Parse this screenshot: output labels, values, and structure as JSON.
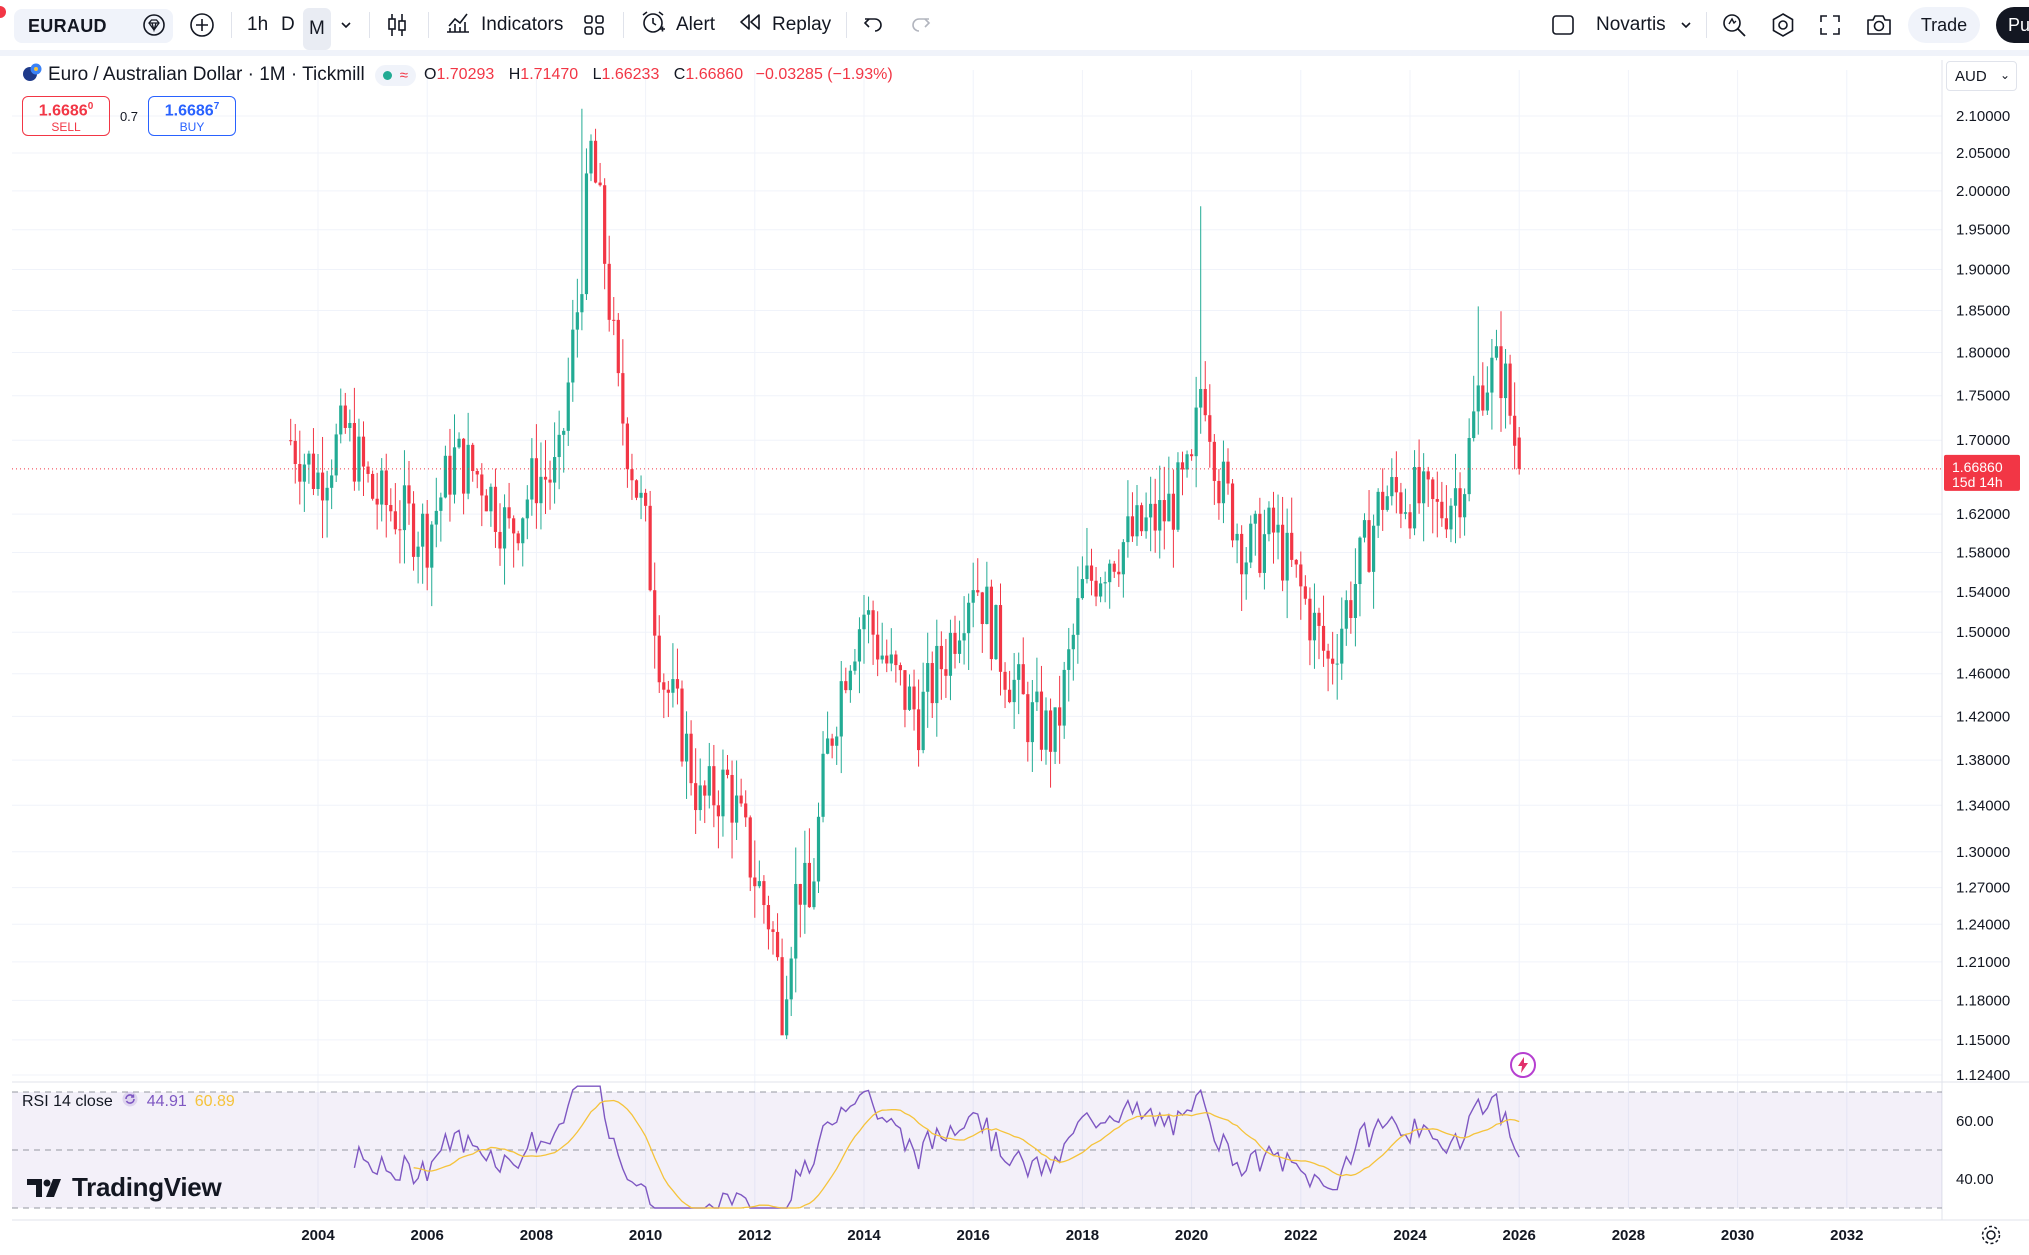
{
  "toolbar": {
    "symbol": "EURAUD",
    "intervals": [
      "1h",
      "D",
      "M"
    ],
    "indicators_label": "Indicators",
    "alert_label": "Alert",
    "replay_label": "Replay",
    "layout_name": "Novartis",
    "trade_label": "Trade",
    "publish_label": "Pu"
  },
  "legend": {
    "title": "Euro / Australian Dollar · 1M · Tickmill",
    "o_label": "O",
    "o_value": "1.70293",
    "h_label": "H",
    "h_value": "1.71470",
    "l_label": "L",
    "l_value": "1.66233",
    "c_label": "C",
    "c_value": "1.66860",
    "change": "−0.03285 (−1.93%)"
  },
  "trade_panel": {
    "sell_price": "1.6686",
    "sell_sup": "0",
    "sell_label": "SELL",
    "spread": "0.7",
    "buy_price": "1.6686",
    "buy_sup": "7",
    "buy_label": "BUY"
  },
  "currency": "AUD",
  "price_scale": {
    "labels": [
      "2.10000",
      "2.05000",
      "2.00000",
      "1.95000",
      "1.90000",
      "1.85000",
      "1.80000",
      "1.75000",
      "1.70000",
      "1.62000",
      "1.58000",
      "1.54000",
      "1.50000",
      "1.46000",
      "1.42000",
      "1.38000",
      "1.34000",
      "1.30000",
      "1.27000",
      "1.24000",
      "1.21000",
      "1.18000",
      "1.15000",
      "1.12400"
    ],
    "last_price": "1.66860",
    "countdown": "15d 14h"
  },
  "time_axis": [
    "2004",
    "2006",
    "2008",
    "2010",
    "2012",
    "2014",
    "2016",
    "2018",
    "2020",
    "2022",
    "2024",
    "2026",
    "2028",
    "2030",
    "2032"
  ],
  "rsi": {
    "label": "RSI 14 close",
    "value": "44.91",
    "ma_value": "60.89",
    "scale": [
      "60.00",
      "40.00"
    ]
  },
  "brand": "TradingView",
  "colors": {
    "up": "#22ab94",
    "down": "#f23645",
    "rsi_line": "#7e57c2",
    "rsi_ma": "#f5c33b",
    "rsi_band": "#7e57c2"
  },
  "chart_data": {
    "type": "candlestick",
    "symbol": "EURAUD",
    "timeframe": "1M",
    "ohlc_points": [
      {
        "t": "2003.5",
        "c": 1.7
      },
      {
        "t": "2004.0",
        "c": 1.66
      },
      {
        "t": "2004.5",
        "c": 1.71
      },
      {
        "t": "2005.0",
        "c": 1.64
      },
      {
        "t": "2005.5",
        "c": 1.62
      },
      {
        "t": "2006.0",
        "c": 1.6
      },
      {
        "t": "2006.5",
        "c": 1.68
      },
      {
        "t": "2007.0",
        "c": 1.66
      },
      {
        "t": "2007.5",
        "c": 1.6
      },
      {
        "t": "2008.0",
        "c": 1.66
      },
      {
        "t": "2008.4",
        "c": 1.66
      },
      {
        "t": "2008.8",
        "c": 1.88
      },
      {
        "t": "2009.0",
        "c": 2.05
      },
      {
        "t": "2009.2",
        "c": 1.95
      },
      {
        "t": "2009.5",
        "c": 1.75
      },
      {
        "t": "2010.0",
        "c": 1.6
      },
      {
        "t": "2010.3",
        "c": 1.46
      },
      {
        "t": "2010.7",
        "c": 1.4
      },
      {
        "t": "2011.0",
        "c": 1.34
      },
      {
        "t": "2011.5",
        "c": 1.36
      },
      {
        "t": "2012.0",
        "c": 1.28
      },
      {
        "t": "2012.3",
        "c": 1.24
      },
      {
        "t": "2012.5",
        "c": 1.18
      },
      {
        "t": "2012.8",
        "c": 1.28
      },
      {
        "t": "2013.0",
        "c": 1.25
      },
      {
        "t": "2013.3",
        "c": 1.38
      },
      {
        "t": "2013.7",
        "c": 1.48
      },
      {
        "t": "2014.0",
        "c": 1.52
      },
      {
        "t": "2014.5",
        "c": 1.46
      },
      {
        "t": "2015.0",
        "c": 1.42
      },
      {
        "t": "2015.5",
        "c": 1.48
      },
      {
        "t": "2016.0",
        "c": 1.56
      },
      {
        "t": "2016.5",
        "c": 1.48
      },
      {
        "t": "2017.0",
        "c": 1.42
      },
      {
        "t": "2017.5",
        "c": 1.4
      },
      {
        "t": "2018.0",
        "c": 1.54
      },
      {
        "t": "2018.5",
        "c": 1.58
      },
      {
        "t": "2019.0",
        "c": 1.6
      },
      {
        "t": "2019.5",
        "c": 1.62
      },
      {
        "t": "2020.0",
        "c": 1.66
      },
      {
        "t": "2020.2",
        "c": 1.78
      },
      {
        "t": "2020.5",
        "c": 1.66
      },
      {
        "t": "2021.0",
        "c": 1.58
      },
      {
        "t": "2021.5",
        "c": 1.6
      },
      {
        "t": "2022.0",
        "c": 1.54
      },
      {
        "t": "2022.5",
        "c": 1.47
      },
      {
        "t": "2023.0",
        "c": 1.55
      },
      {
        "t": "2023.5",
        "c": 1.64
      },
      {
        "t": "2024.0",
        "c": 1.64
      },
      {
        "t": "2024.5",
        "c": 1.62
      },
      {
        "t": "2025.0",
        "c": 1.66
      },
      {
        "t": "2025.3",
        "c": 1.77
      },
      {
        "t": "2025.7",
        "c": 1.78
      },
      {
        "t": "2026.0",
        "c": 1.6686
      }
    ],
    "last": {
      "o": 1.70293,
      "h": 1.7147,
      "l": 1.66233,
      "c": 1.6686
    },
    "yrange": [
      1.124,
      2.1
    ],
    "xrange": [
      2003,
      2033
    ],
    "rsi_range": [
      30,
      70
    ],
    "rsi_band": [
      50,
      70
    ]
  }
}
